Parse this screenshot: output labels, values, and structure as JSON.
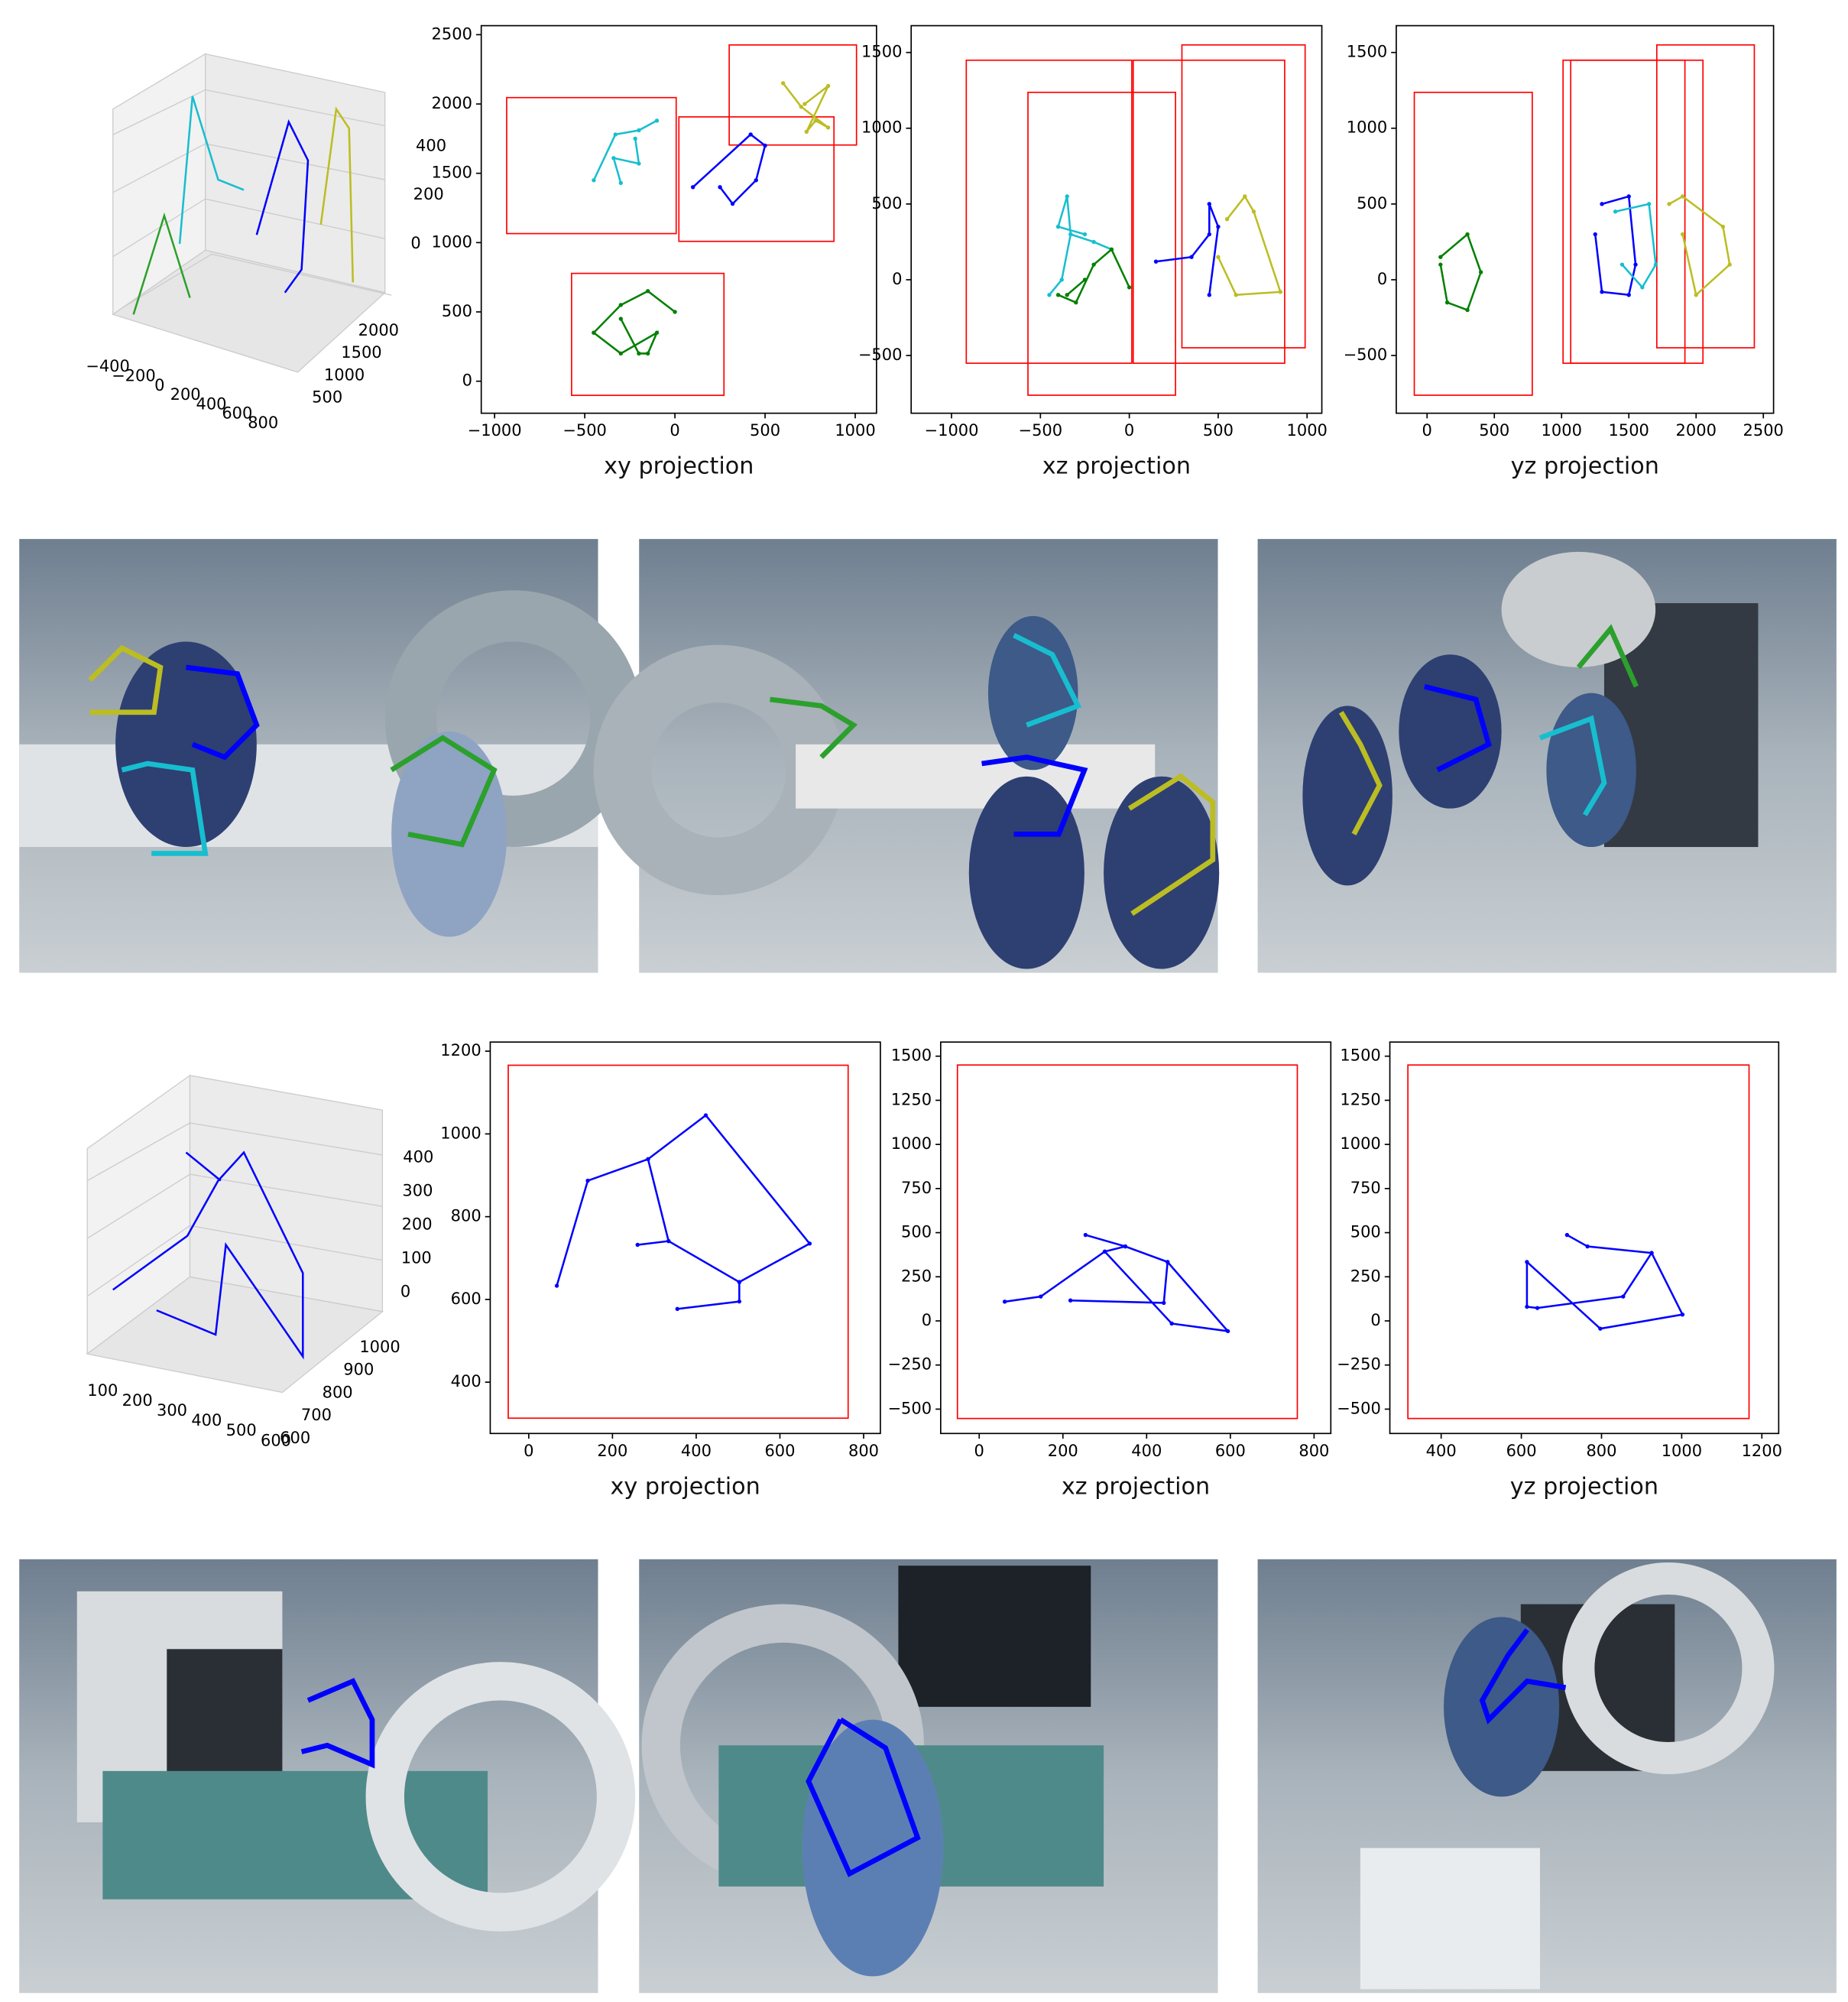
{
  "chart_data": [
    {
      "type": "line",
      "xlabel": "xy projection",
      "xlim": [
        -1074,
        1118
      ],
      "ylim": [
        -231,
        2565
      ],
      "xticks": [
        {
          "value": -1000,
          "label": "−1000"
        },
        {
          "value": -500,
          "label": "−500"
        },
        0,
        500,
        1000
      ],
      "yticks": [
        0,
        500,
        1000,
        1500,
        2000,
        2500
      ],
      "box_color": "#ff0000",
      "boxes": [
        {
          "x": [
            -933,
            7
          ],
          "y": [
            1065,
            2046
          ]
        },
        {
          "x": [
            22,
            882
          ],
          "y": [
            1009,
            1907
          ]
        },
        {
          "x": [
            301,
            1007
          ],
          "y": [
            1704,
            2426
          ]
        },
        {
          "x": [
            -573,
            272
          ],
          "y": [
            -102,
            778
          ]
        }
      ],
      "series": [
        {
          "color": "#17becf",
          "x": [
            -450,
            -330,
            -200,
            -100,
            null,
            -300,
            -340,
            -200,
            -220
          ],
          "y": [
            1450,
            1780,
            1810,
            1880,
            null,
            1430,
            1610,
            1570,
            1750
          ]
        },
        {
          "color": "#0000ff",
          "x": [
            100,
            420,
            500,
            450,
            320,
            250
          ],
          "y": [
            1400,
            1780,
            1700,
            1450,
            1280,
            1400
          ]
        },
        {
          "color": "#bcbd22",
          "x": [
            600,
            700,
            850,
            780,
            730,
            850,
            720
          ],
          "y": [
            2150,
            1980,
            1830,
            1880,
            1800,
            2130,
            2000
          ]
        },
        {
          "color": "#008000",
          "x": [
            -450,
            -300,
            -150,
            0,
            null,
            -300,
            -200,
            -150,
            -100,
            -300,
            -450
          ],
          "y": [
            350,
            550,
            650,
            500,
            null,
            450,
            200,
            200,
            350,
            200,
            350
          ]
        }
      ]
    },
    {
      "type": "line",
      "xlabel": "xz projection",
      "xlim": [
        -1227,
        1083
      ],
      "ylim": [
        -881,
        1677
      ],
      "xticks": [
        {
          "value": -1000,
          "label": "−1000"
        },
        {
          "value": -500,
          "label": "−500"
        },
        0,
        500,
        1000
      ],
      "yticks": [
        {
          "value": -500,
          "label": "−500"
        },
        0,
        500,
        1000,
        1500
      ],
      "box_color": "#ff0000",
      "boxes": [
        {
          "x": [
            -917,
            14
          ],
          "y": [
            -551,
            1449
          ]
        },
        {
          "x": [
            -570,
            260
          ],
          "y": [
            -762,
            1237
          ]
        },
        {
          "x": [
            22,
            874
          ],
          "y": [
            -551,
            1449
          ]
        },
        {
          "x": [
            296,
            989
          ],
          "y": [
            -449,
            1550
          ]
        }
      ],
      "series": [
        {
          "color": "#17becf",
          "x": [
            -400,
            -350,
            -330,
            -380,
            -450,
            null,
            -330,
            -200,
            -100,
            null,
            -400,
            -250
          ],
          "y": [
            350,
            550,
            300,
            0,
            -100,
            null,
            300,
            250,
            200,
            null,
            350,
            300
          ]
        },
        {
          "color": "#008000",
          "x": [
            -400,
            -300,
            -200,
            -100,
            0,
            null,
            -250,
            -350
          ],
          "y": [
            -100,
            -150,
            100,
            200,
            -50,
            null,
            0,
            -100
          ]
        },
        {
          "color": "#0000ff",
          "x": [
            150,
            350,
            450,
            450,
            500,
            450
          ],
          "y": [
            120,
            150,
            300,
            500,
            350,
            -100
          ]
        },
        {
          "color": "#bcbd22",
          "x": [
            550,
            650,
            700,
            850,
            600,
            500
          ],
          "y": [
            400,
            550,
            450,
            -80,
            -100,
            150
          ]
        }
      ]
    },
    {
      "type": "line",
      "xlabel": "yz projection",
      "xlim": [
        -229,
        2576
      ],
      "ylim": [
        -881,
        1677
      ],
      "xticks": [
        0,
        500,
        1000,
        1500,
        2000,
        2500
      ],
      "yticks": [
        {
          "value": -500,
          "label": "−500"
        },
        0,
        500,
        1000,
        1500
      ],
      "box_color": "#ff0000",
      "boxes": [
        {
          "x": [
            -95,
            782
          ],
          "y": [
            -762,
            1237
          ]
        },
        {
          "x": [
            1011,
            1917
          ],
          "y": [
            -551,
            1449
          ]
        },
        {
          "x": [
            1068,
            2051
          ],
          "y": [
            -551,
            1449
          ]
        },
        {
          "x": [
            1708,
            2433
          ],
          "y": [
            -449,
            1550
          ]
        }
      ],
      "series": [
        {
          "color": "#008000",
          "x": [
            100,
            300,
            400,
            300,
            150,
            100
          ],
          "y": [
            150,
            300,
            50,
            -200,
            -150,
            100
          ]
        },
        {
          "color": "#0000ff",
          "x": [
            1300,
            1500,
            1550,
            1500,
            1300,
            1250
          ],
          "y": [
            500,
            550,
            100,
            -100,
            -80,
            300
          ]
        },
        {
          "color": "#17becf",
          "x": [
            1400,
            1650,
            1700,
            1600,
            1450
          ],
          "y": [
            450,
            500,
            100,
            -50,
            100
          ]
        },
        {
          "color": "#bcbd22",
          "x": [
            1800,
            1900,
            2200,
            2250,
            2000,
            1900
          ],
          "y": [
            500,
            550,
            350,
            100,
            -100,
            300
          ]
        }
      ]
    },
    {
      "type": "line",
      "xlabel": "xy projection",
      "xlim": [
        -92,
        840
      ],
      "ylim": [
        276,
        1222
      ],
      "xticks": [
        0,
        200,
        400,
        600,
        800
      ],
      "yticks": [
        400,
        600,
        800,
        1000,
        1200
      ],
      "box_color": "#ff0000",
      "boxes": [
        {
          "x": [
            -49,
            763
          ],
          "y": [
            313,
            1166
          ]
        }
      ],
      "series": [
        {
          "color": "#0000ff",
          "x": [
            67,
            141,
            285,
            423,
            671,
            503,
            503,
            355,
            null,
            285,
            334,
            260,
            null,
            334,
            503
          ],
          "y": [
            633,
            887,
            939,
            1045,
            735,
            642,
            595,
            577,
            null,
            939,
            741,
            732,
            null,
            741,
            642
          ]
        }
      ]
    },
    {
      "type": "line",
      "xlabel": "xz projection",
      "xlim": [
        -92,
        840
      ],
      "ylim": [
        -638,
        1580
      ],
      "xticks": [
        0,
        200,
        400,
        600,
        800
      ],
      "yticks": [
        {
          "value": -500,
          "label": "−500"
        },
        {
          "value": -250,
          "label": "−250"
        },
        0,
        250,
        500,
        750,
        1000,
        1250,
        1500
      ],
      "box_color": "#ff0000",
      "boxes": [
        {
          "x": [
            -52,
            760
          ],
          "y": [
            -553,
            1450
          ]
        }
      ],
      "series": [
        {
          "color": "#0000ff",
          "x": [
            61,
            147,
            300,
            349,
            450,
            441,
            218,
            null,
            254,
            349,
            null,
            300,
            460,
            594,
            450
          ],
          "y": [
            109,
            138,
            393,
            422,
            334,
            102,
            116,
            null,
            487,
            422,
            null,
            393,
            -15,
            -58,
            334
          ]
        }
      ]
    },
    {
      "type": "line",
      "xlabel": "yz projection",
      "xlim": [
        272,
        1242
      ],
      "ylim": [
        -638,
        1580
      ],
      "xticks": [
        400,
        600,
        800,
        1000,
        1200
      ],
      "yticks": [
        {
          "value": -500,
          "label": "−500"
        },
        {
          "value": -250,
          "label": "−250"
        },
        0,
        250,
        500,
        750,
        1000,
        1250,
        1500
      ],
      "box_color": "#ff0000",
      "boxes": [
        {
          "x": [
            317,
            1168
          ],
          "y": [
            -553,
            1450
          ]
        }
      ],
      "series": [
        {
          "color": "#0000ff",
          "x": [
            714,
            765,
            925,
            1002,
            797,
            614,
            614,
            640,
            854,
            925
          ],
          "y": [
            487,
            422,
            385,
            36,
            -44,
            334,
            80,
            73,
            138,
            385
          ]
        }
      ]
    }
  ],
  "plots_3d": [
    {
      "xticks": [
        {
          "value": -400,
          "label": "−400"
        },
        {
          "value": -200,
          "label": "−200"
        },
        0,
        200,
        400,
        600,
        800
      ],
      "yticks": [
        500,
        1000,
        1500,
        2000
      ],
      "zticks": [
        0,
        200,
        400
      ]
    },
    {
      "xticks": [
        100,
        200,
        300,
        400,
        500,
        600
      ],
      "yticks": [
        600,
        700,
        800,
        900,
        1000
      ],
      "zticks": [
        0,
        100,
        200,
        300,
        400
      ]
    }
  ]
}
